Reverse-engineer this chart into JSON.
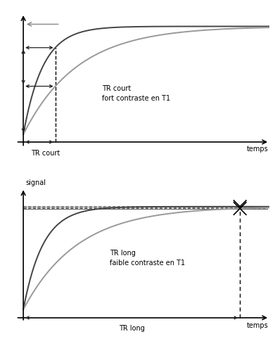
{
  "t_max": 10,
  "T1_fast": 0.8,
  "T1_slow": 2.2,
  "TR_short": 1.3,
  "TR_long": 8.8,
  "text_TR_court": "TR court\nfort contraste en T1",
  "text_TR_long": "TR long\nfaible contraste en T1",
  "label_temps": "temps",
  "label_signal": "signal",
  "label_TR_court": "TR court",
  "label_TR_long": "TR long",
  "color_fast": "#444444",
  "color_slow": "#999999",
  "color_arrow": "#222222",
  "fontsize_label": 7,
  "fontsize_annot": 7
}
